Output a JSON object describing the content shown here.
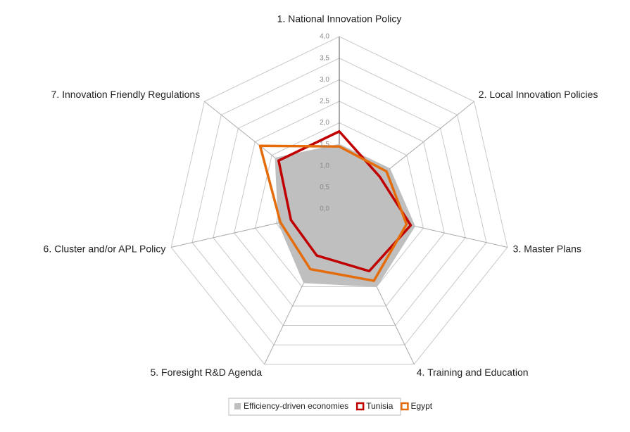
{
  "chart_data": {
    "type": "radar",
    "categories": [
      "1. National Innovation Policy",
      "2. Local Innovation Policies",
      "3. Master Plans",
      "4. Training and Education",
      "5. Foresight R&D Agenda",
      "6. Cluster and/or APL Policy",
      "7. Innovation Friendly Regulations"
    ],
    "series": [
      {
        "name": "Efficiency-driven economies",
        "color": "#bfbfbf",
        "filled": true,
        "values": [
          1.5,
          1.5,
          1.8,
          2.0,
          1.9,
          1.45,
          1.9
        ]
      },
      {
        "name": "Tunisia",
        "color": "#c00000",
        "filled": false,
        "values": [
          1.8,
          1.2,
          1.7,
          1.6,
          1.2,
          1.15,
          1.8
        ]
      },
      {
        "name": "Egypt",
        "color": "#e46c0a",
        "filled": false,
        "values": [
          1.45,
          1.4,
          1.6,
          1.85,
          1.55,
          1.4,
          2.35
        ]
      }
    ],
    "ylim": [
      0,
      4
    ],
    "yticks": [
      {
        "value": 0,
        "label": "0,0"
      },
      {
        "value": 0.5,
        "label": "0,5"
      },
      {
        "value": 1,
        "label": "1,0"
      },
      {
        "value": 1.5,
        "label": "1,5"
      },
      {
        "value": 2,
        "label": "2,0"
      },
      {
        "value": 2.5,
        "label": "2,5"
      },
      {
        "value": 3,
        "label": "3,0"
      },
      {
        "value": 3.5,
        "label": "3,5"
      },
      {
        "value": 4,
        "label": "4,0"
      }
    ],
    "grid": true,
    "legend": "bottom"
  }
}
